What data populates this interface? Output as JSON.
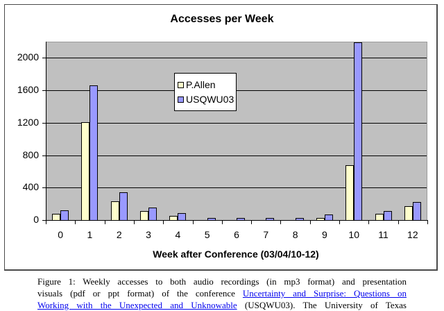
{
  "figure": {
    "caption_prefix": "Figure 1: Weekly accesses to both audio recordings (in mp3 format) and presentation",
    "caption_line2_pre": "visuals (pdf or ppt format) of the conference ",
    "caption_link_part1": "Uncertainty and Surprise: Questions on",
    "caption_link_part2": "Working with the Unexpected and Unknowable",
    "caption_line3_post": " (USQWU03). The University of Texas"
  },
  "chart_data": {
    "type": "bar",
    "title": "Accesses per Week",
    "xlabel": "Week after Conference (03/04/10-12)",
    "ylabel": "",
    "ylim": [
      0,
      2200
    ],
    "yticks": [
      0,
      400,
      800,
      1200,
      1600,
      2000
    ],
    "ytick_labels": [
      "0",
      "400",
      "800",
      "1200",
      "1600",
      "2000"
    ],
    "grid": true,
    "legend_position": "upper-left-center (inside plot)",
    "categories": [
      "0",
      "1",
      "2",
      "3",
      "4",
      "5",
      "6",
      "7",
      "8",
      "9",
      "10",
      "11",
      "12"
    ],
    "series": [
      {
        "name": "P.Allen",
        "color": "#ffffcc",
        "values": [
          80,
          1210,
          230,
          115,
          55,
          0,
          0,
          0,
          0,
          25,
          680,
          75,
          170
        ]
      },
      {
        "name": "USQWU03",
        "color": "#9999ff",
        "values": [
          120,
          1660,
          340,
          150,
          85,
          25,
          25,
          25,
          25,
          65,
          2190,
          115,
          220
        ]
      }
    ]
  },
  "colors": {
    "plot_background": "#c0c0c0",
    "link": "#0000ee"
  }
}
